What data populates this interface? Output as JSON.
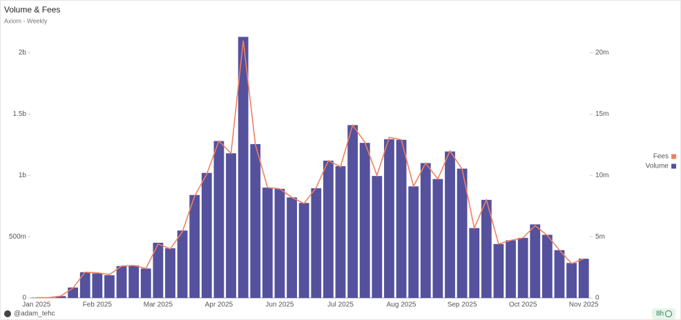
{
  "chart_data": {
    "type": "bar_line",
    "title": "Volume & Fees",
    "subtitle": "Axiom - Weekly",
    "categories": [
      "Jan 2025",
      null,
      null,
      null,
      null,
      "Feb 2025",
      null,
      null,
      null,
      null,
      "Mar 2025",
      null,
      null,
      null,
      null,
      "Apr 2025",
      null,
      null,
      null,
      null,
      "Jun 2025",
      null,
      null,
      null,
      null,
      "Jul 2025",
      null,
      null,
      null,
      null,
      "Aug 2025",
      null,
      null,
      null,
      null,
      "Sep 2025",
      null,
      null,
      null,
      null,
      "Oct 2025",
      null,
      null,
      null,
      null,
      "Nov 2025"
    ],
    "series": [
      {
        "name": "Fees",
        "color": "#f07f5f",
        "axis": "y2",
        "values": [
          20000,
          20000,
          150000,
          800000,
          2100000,
          2050000,
          1900000,
          2600000,
          2650000,
          2400000,
          4400000,
          4000000,
          5400000,
          8300000,
          10100000,
          12800000,
          11800000,
          21000000,
          12500000,
          9000000,
          8900000,
          8200000,
          7700000,
          9000000,
          11200000,
          10700000,
          14100000,
          12700000,
          10000000,
          13100000,
          12900000,
          9100000,
          11000000,
          9700000,
          12000000,
          10500000,
          5700000,
          8000000,
          4400000,
          4700000,
          4900000,
          5900000,
          5100000,
          3900000,
          2800000,
          3200000
        ]
      },
      {
        "name": "Volume",
        "color": "#55519d",
        "values": [
          2000000,
          2000000,
          15000000,
          85000000,
          210000000,
          200000000,
          185000000,
          260000000,
          265000000,
          240000000,
          450000000,
          405000000,
          550000000,
          840000000,
          1020000000,
          1280000000,
          1180000000,
          2130000000,
          1255000000,
          900000000,
          890000000,
          820000000,
          775000000,
          895000000,
          1120000000,
          1075000000,
          1410000000,
          1265000000,
          995000000,
          1295000000,
          1290000000,
          910000000,
          1100000000,
          970000000,
          1195000000,
          1055000000,
          570000000,
          800000000,
          440000000,
          470000000,
          490000000,
          600000000,
          515000000,
          390000000,
          285000000,
          320000000
        ]
      }
    ],
    "ylim": [
      0,
      2200000000
    ],
    "yticks": [
      0,
      {
        "value": 500000000,
        "label": "500m"
      },
      {
        "value": 1000000000,
        "label": "1b"
      },
      {
        "value": 1500000000,
        "label": "1.5b"
      },
      {
        "value": 2000000000,
        "label": "2b"
      }
    ],
    "y2lim": [
      0,
      22000000
    ],
    "y2ticks": [
      0,
      {
        "value": 5000000,
        "label": "5m"
      },
      {
        "value": 10000000,
        "label": "10m"
      },
      {
        "value": 15000000,
        "label": "15m"
      },
      {
        "value": 20000000,
        "label": "20m"
      }
    ],
    "legend": "right",
    "footer": "@adam_tehc",
    "badge": "8h"
  }
}
